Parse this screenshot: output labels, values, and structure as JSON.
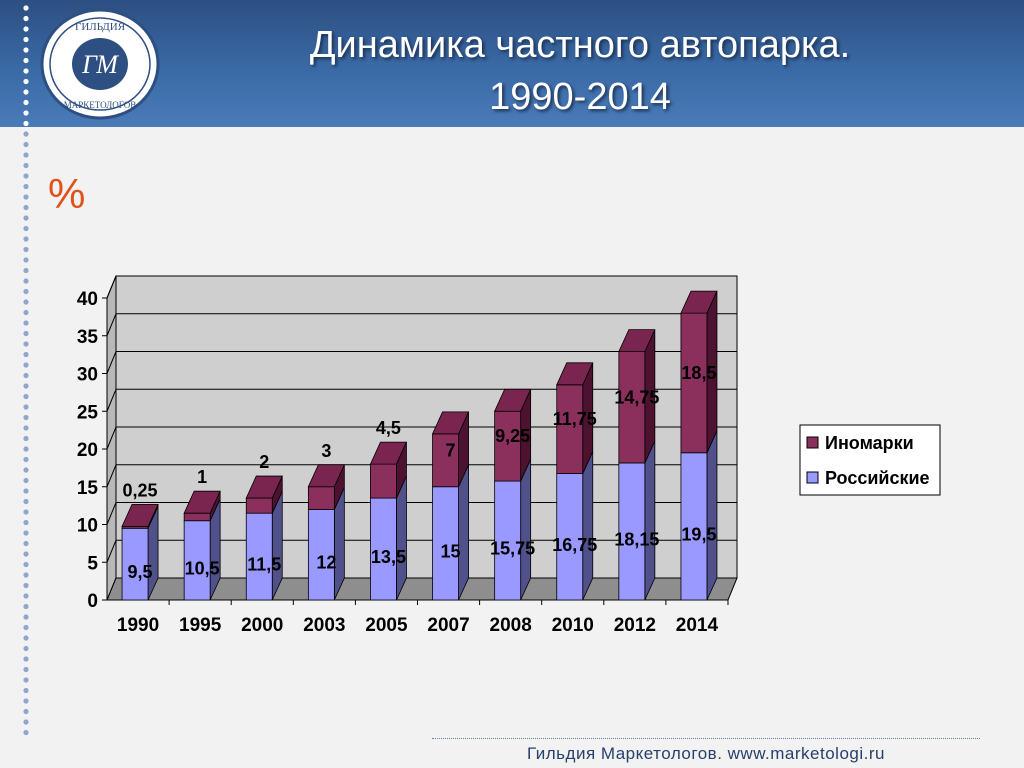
{
  "title_line1": "Динамика частного автопарка.",
  "title_line2": "1990-2014",
  "unit_label": "%",
  "logo": {
    "top_text": "ГИЛЬДИЯ",
    "bottom_text": "МАРКЕТОЛОГОВ",
    "monogram": "ГМ"
  },
  "footer": "Гильдия Маркетологов. www.marketologi.ru",
  "colors": {
    "header": "#3a6aa6",
    "inomarki": "#8b2f5c",
    "rossiyskie": "#9999ff",
    "accent": "#e0521c"
  },
  "chart_data": {
    "type": "bar",
    "stacked": true,
    "categories": [
      "1990",
      "1995",
      "2000",
      "2003",
      "2005",
      "2007",
      "2008",
      "2010",
      "2012",
      "2014"
    ],
    "series": [
      {
        "name": "Российские",
        "values": [
          9.5,
          10.5,
          11.5,
          12,
          13.5,
          15,
          15.75,
          16.75,
          18.15,
          19.5
        ],
        "labels": [
          "9,5",
          "10,5",
          "11,5",
          "12",
          "13,5",
          "15",
          "15,75",
          "16,75",
          "18,15",
          "19,5"
        ]
      },
      {
        "name": "Иномарки",
        "values": [
          0.25,
          1,
          2,
          3,
          4.5,
          7,
          9.25,
          11.75,
          14.75,
          18.5
        ],
        "labels": [
          "0,25",
          "1",
          "2",
          "3",
          "4,5",
          "7",
          "9,25",
          "11,75",
          "14,75",
          "18,5"
        ]
      }
    ],
    "y_ticks": [
      "0",
      "5",
      "10",
      "15",
      "20",
      "25",
      "30",
      "35",
      "40"
    ],
    "ylim": [
      0,
      40
    ],
    "grid": true,
    "legend_position": "right",
    "legend": [
      "Иномарки",
      "Российские"
    ]
  }
}
